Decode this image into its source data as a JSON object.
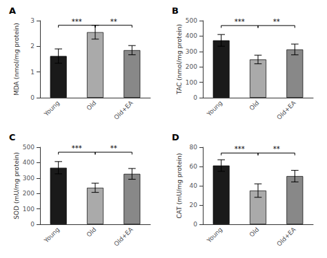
{
  "chart_data": [
    {
      "type": "bar",
      "title": "A",
      "ylabel": "MDA (nmol/mg protein)",
      "categories": [
        "Young",
        "Old",
        "Old+EA"
      ],
      "values": [
        1.62,
        2.55,
        1.85
      ],
      "errors": [
        0.28,
        0.27,
        0.18
      ],
      "colors": [
        "#1a1a1a",
        "#aaaaaa",
        "#888888"
      ],
      "ylim": [
        0,
        3
      ],
      "yticks": [
        0,
        1,
        2,
        3
      ],
      "grid": false,
      "annotations": [
        {
          "from": "Young",
          "to": "Old",
          "y": 2.82,
          "text": "***"
        },
        {
          "from": "Old",
          "to": "Old+EA",
          "y": 2.82,
          "text": "**"
        }
      ]
    },
    {
      "type": "bar",
      "title": "B",
      "ylabel": "TAC (nmol/mg protein)",
      "categories": [
        "Young",
        "Old",
        "Old+EA"
      ],
      "values": [
        372,
        248,
        313
      ],
      "errors": [
        38,
        28,
        35
      ],
      "colors": [
        "#1a1a1a",
        "#aaaaaa",
        "#888888"
      ],
      "ylim": [
        0,
        500
      ],
      "yticks": [
        0,
        100,
        200,
        300,
        400,
        500
      ],
      "grid": false,
      "annotations": [
        {
          "from": "Young",
          "to": "Old",
          "y": 468,
          "text": "***"
        },
        {
          "from": "Old",
          "to": "Old+EA",
          "y": 468,
          "text": "**"
        }
      ]
    },
    {
      "type": "bar",
      "title": "C",
      "ylabel": "SOD (mU/mg protein)",
      "categories": [
        "Young",
        "Old",
        "Old+EA"
      ],
      "values": [
        367,
        237,
        327
      ],
      "errors": [
        40,
        30,
        35
      ],
      "colors": [
        "#1a1a1a",
        "#aaaaaa",
        "#888888"
      ],
      "ylim": [
        0,
        500
      ],
      "yticks": [
        0,
        100,
        200,
        300,
        400,
        500
      ],
      "grid": false,
      "annotations": [
        {
          "from": "Young",
          "to": "Old",
          "y": 468,
          "text": "***"
        },
        {
          "from": "Old",
          "to": "Old+EA",
          "y": 468,
          "text": "**"
        }
      ]
    },
    {
      "type": "bar",
      "title": "D",
      "ylabel": "CAT (mU/mg protein)",
      "categories": [
        "Young",
        "Old",
        "Old+EA"
      ],
      "values": [
        61,
        35,
        50
      ],
      "errors": [
        6,
        7,
        6
      ],
      "colors": [
        "#1a1a1a",
        "#aaaaaa",
        "#888888"
      ],
      "ylim": [
        0,
        80
      ],
      "yticks": [
        0,
        20,
        40,
        60,
        80
      ],
      "grid": false,
      "annotations": [
        {
          "from": "Young",
          "to": "Old",
          "y": 74,
          "text": "***"
        },
        {
          "from": "Old",
          "to": "Old+EA",
          "y": 74,
          "text": "**"
        }
      ]
    }
  ]
}
